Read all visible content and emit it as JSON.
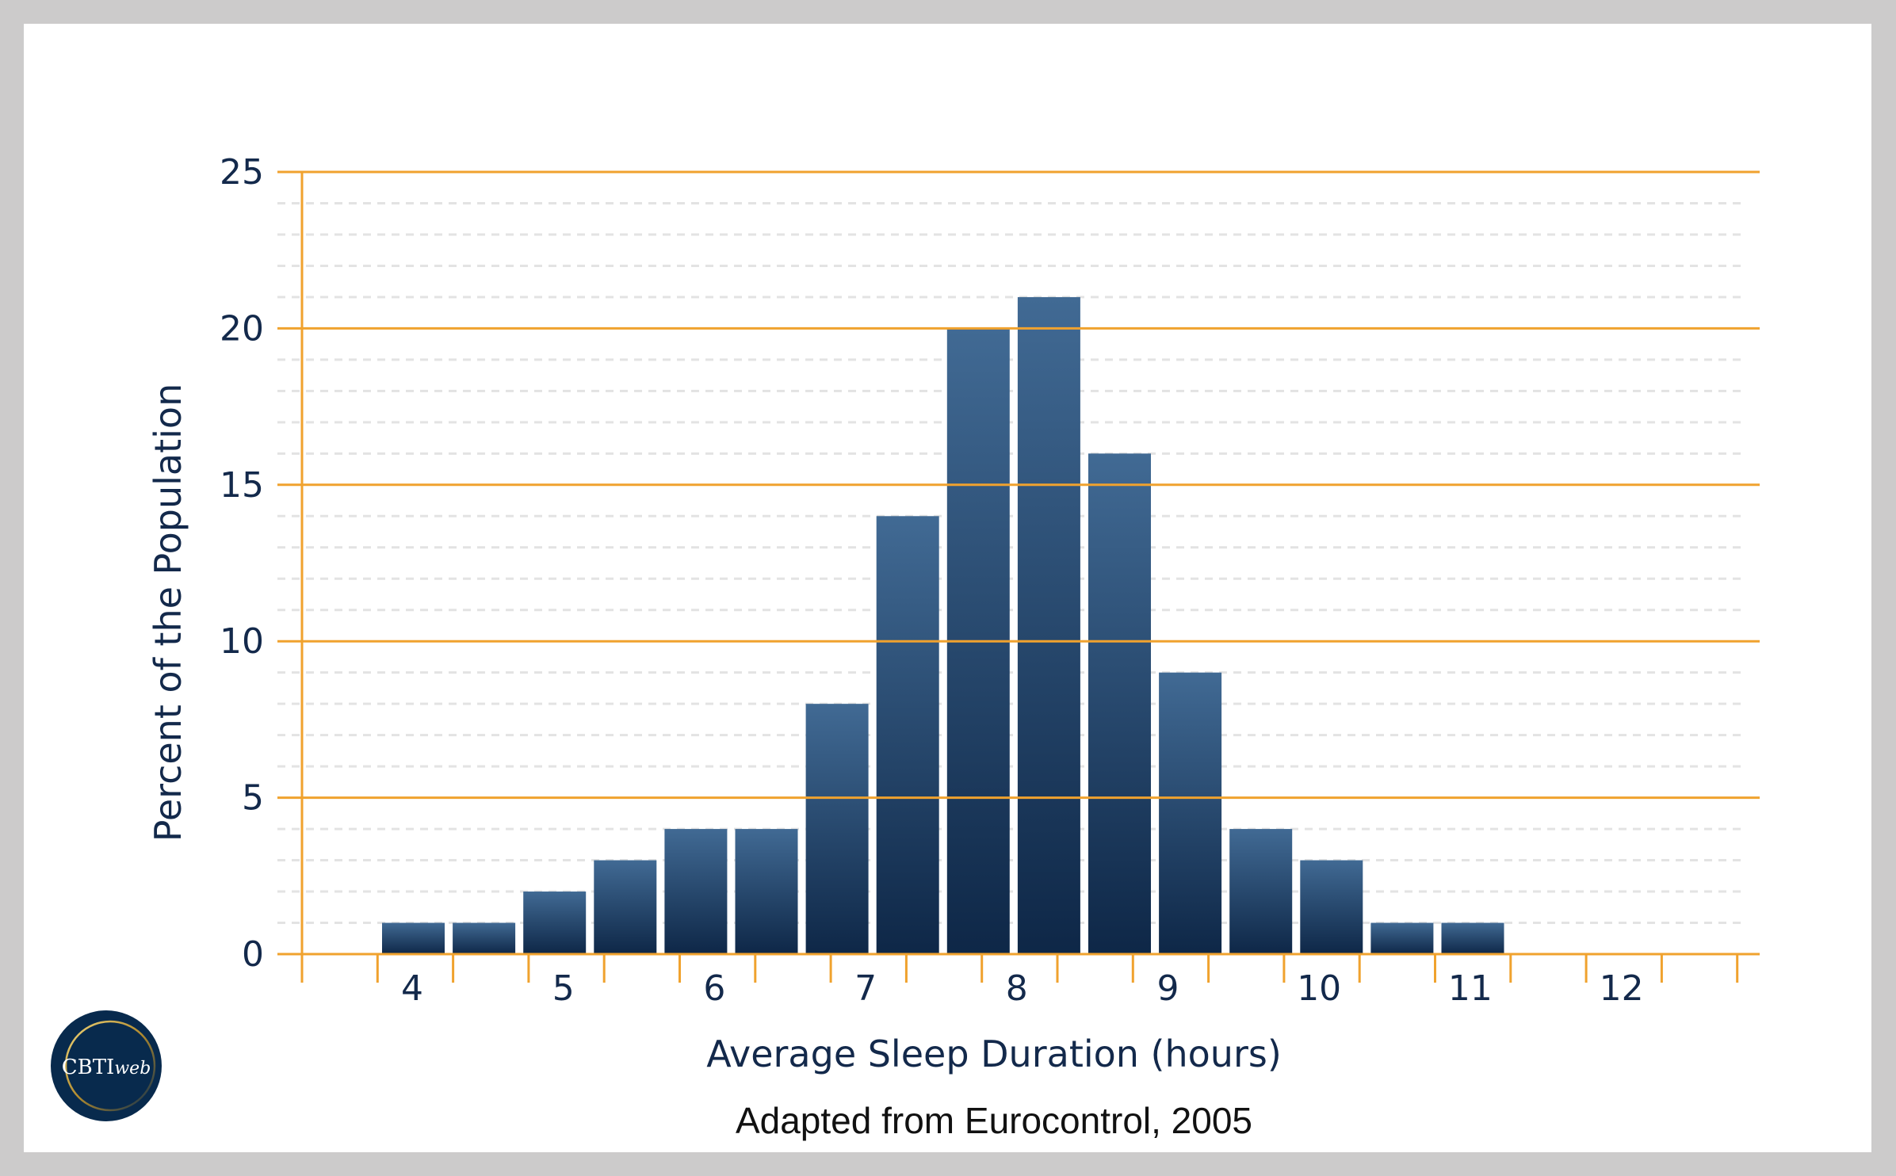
{
  "chart_data": {
    "type": "bar",
    "title": "",
    "xlabel": "Average Sleep Duration (hours)",
    "ylabel": "Percent of the Population",
    "x_tick_labels": [
      "4",
      "5",
      "6",
      "7",
      "8",
      "9",
      "10",
      "11",
      "12"
    ],
    "y_tick_labels": [
      "0",
      "5",
      "10",
      "15",
      "20",
      "25"
    ],
    "ylim": [
      0,
      25
    ],
    "categories": [
      "4",
      "4.5",
      "5",
      "5.5",
      "6",
      "6.5",
      "7",
      "7.5",
      "8",
      "8.5",
      "9",
      "9.5",
      "10",
      "10.5",
      "11",
      "11.5"
    ],
    "values": [
      1,
      1,
      2,
      3,
      4,
      4,
      8,
      14,
      20,
      21,
      16,
      9,
      4,
      3,
      1,
      1
    ],
    "grid": {
      "major": "solid orange every 5",
      "minor": "dashed grey every 1"
    },
    "colors": {
      "bar_top": "#416a94",
      "bar_bottom": "#0e2747",
      "axis": "#f0a22e",
      "minor_grid": "#e3e3e3"
    },
    "source": "Adapted from Eurocontrol, 2005"
  },
  "logo": {
    "text": "CBTIweb",
    "colors": {
      "bg": "#082a4d",
      "ring": "#c9a544"
    }
  }
}
